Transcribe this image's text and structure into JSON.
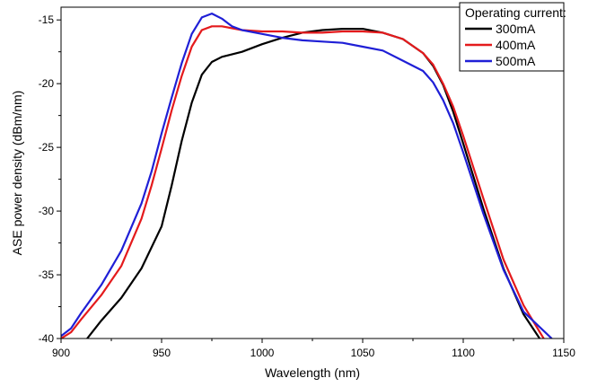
{
  "chart_data": {
    "type": "line",
    "xlabel": "Wavelength (nm)",
    "ylabel": "ASE power density (dBm/nm)",
    "xlim": [
      900,
      1150
    ],
    "ylim": [
      -40,
      -14
    ],
    "xticks": [
      900,
      950,
      1000,
      1050,
      1100,
      1150
    ],
    "yticks": [
      -40,
      -35,
      -30,
      -25,
      -20,
      -15
    ],
    "grid": false,
    "legend": {
      "title": "Operating current:",
      "position": "top-right"
    },
    "series": [
      {
        "name": "300mA",
        "color": "#000000",
        "x": [
          913,
          920,
          930,
          940,
          950,
          955,
          960,
          965,
          970,
          975,
          980,
          990,
          1000,
          1010,
          1020,
          1030,
          1040,
          1050,
          1060,
          1070,
          1080,
          1085,
          1090,
          1095,
          1100,
          1110,
          1120,
          1130,
          1138
        ],
        "y": [
          -40,
          -38.6,
          -36.8,
          -34.5,
          -31.2,
          -28.0,
          -24.5,
          -21.5,
          -19.3,
          -18.3,
          -17.9,
          -17.5,
          -16.9,
          -16.4,
          -16.0,
          -15.8,
          -15.7,
          -15.7,
          -16.0,
          -16.5,
          -17.6,
          -18.6,
          -20.1,
          -22.2,
          -24.7,
          -29.8,
          -34.5,
          -38.1,
          -40
        ]
      },
      {
        "name": "400mA",
        "color": "#e41a1c",
        "x": [
          900,
          905,
          910,
          920,
          930,
          940,
          945,
          950,
          955,
          960,
          965,
          970,
          975,
          980,
          990,
          1000,
          1010,
          1020,
          1030,
          1040,
          1050,
          1060,
          1070,
          1080,
          1085,
          1090,
          1095,
          1100,
          1110,
          1120,
          1130,
          1140
        ],
        "y": [
          -40,
          -39.5,
          -38.5,
          -36.6,
          -34.3,
          -30.6,
          -28.0,
          -25.1,
          -22.1,
          -19.4,
          -17.1,
          -15.8,
          -15.5,
          -15.5,
          -15.8,
          -15.9,
          -15.9,
          -16.0,
          -16.0,
          -15.9,
          -15.9,
          -16.0,
          -16.5,
          -17.6,
          -18.5,
          -20.0,
          -21.8,
          -24.1,
          -29.0,
          -33.8,
          -37.4,
          -40
        ]
      },
      {
        "name": "500mA",
        "color": "#1f1fd6",
        "x": [
          900,
          905,
          910,
          920,
          930,
          940,
          945,
          950,
          955,
          960,
          965,
          970,
          975,
          980,
          985,
          990,
          1000,
          1010,
          1020,
          1030,
          1040,
          1050,
          1060,
          1070,
          1080,
          1085,
          1090,
          1095,
          1100,
          1110,
          1120,
          1130,
          1144
        ],
        "y": [
          -39.8,
          -39.2,
          -38.0,
          -35.8,
          -33.1,
          -29.4,
          -26.9,
          -23.9,
          -21.1,
          -18.4,
          -16.1,
          -14.8,
          -14.5,
          -14.9,
          -15.5,
          -15.8,
          -16.1,
          -16.4,
          -16.6,
          -16.7,
          -16.8,
          -17.1,
          -17.4,
          -18.2,
          -19.0,
          -19.9,
          -21.3,
          -23.1,
          -25.4,
          -30.2,
          -34.6,
          -37.9,
          -40
        ]
      }
    ]
  }
}
